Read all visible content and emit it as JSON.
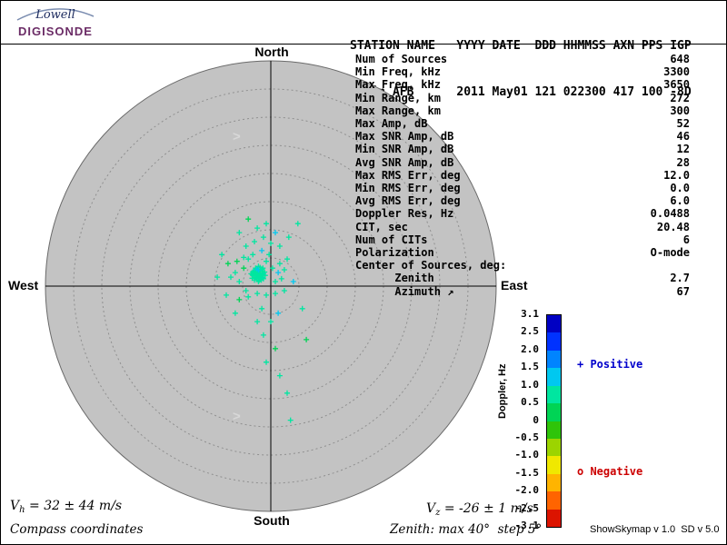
{
  "header": {
    "logo": {
      "name1": "Lowell",
      "name2": "DIGISONDE",
      "accent_color": "#6b2c66",
      "swoosh_color": "#7b8db0"
    },
    "columns_line": "STATION NAME   YYYY DATE  DDD HHMMSS AXN PPS IGP",
    "values_line": "Eglin AFB      2011 May01 121 022300 417 100 -8D"
  },
  "compass": {
    "north": "North",
    "south": "South",
    "east": "East",
    "west": "West"
  },
  "stats": {
    "rows": [
      [
        "Num of Sources",
        "648"
      ],
      [
        "Min Freq, kHz",
        "3300"
      ],
      [
        "Max Freq, kHz",
        "3650"
      ],
      [
        "Min Range, km",
        "272"
      ],
      [
        "Max Range, km",
        "300"
      ],
      [
        "Max Amp, dB",
        "52"
      ],
      [
        "Max SNR Amp, dB",
        "46"
      ],
      [
        "Min SNR Amp, dB",
        "12"
      ],
      [
        "Avg SNR Amp, dB",
        "28"
      ],
      [
        "Max RMS Err, deg",
        "12.0"
      ],
      [
        "Min RMS Err, deg",
        "0.0"
      ],
      [
        "Avg RMS Err, deg",
        "6.0"
      ],
      [
        "Doppler Res, Hz",
        "0.0488"
      ],
      [
        "CIT, sec",
        "20.48"
      ],
      [
        "Num of CITs",
        "6"
      ],
      [
        "Polarization",
        "O-mode"
      ],
      [
        "Center of Sources, deg:",
        ""
      ],
      [
        "      Zenith",
        "2.7"
      ],
      [
        "      Azimuth ↗",
        "67"
      ]
    ]
  },
  "colorbar": {
    "title": "Doppler, Hz",
    "ticks": [
      "3.1",
      "2.5",
      "2.0",
      "1.5",
      "1.0",
      "0.5",
      "0",
      "-0.5",
      "-1.0",
      "-1.5",
      "-2.0",
      "-2.5",
      "-3.1"
    ],
    "tick_values": [
      3.1,
      2.5,
      2.0,
      1.5,
      1.0,
      0.5,
      0,
      -0.5,
      -1.0,
      -1.5,
      -2.0,
      -2.5,
      -3.1
    ],
    "segment_colors": [
      "#0000c3",
      "#0032ff",
      "#0084ff",
      "#00c8f0",
      "#00e6a0",
      "#00d455",
      "#2fc40a",
      "#9cd400",
      "#f0e800",
      "#ffb400",
      "#ff6400",
      "#dc1400"
    ],
    "legend": {
      "positive": "+ Positive",
      "negative": "o Negative",
      "positive_color": "#0000cc",
      "negative_color": "#cc0000"
    }
  },
  "footer": {
    "vh": {
      "v": "V",
      "sub": "h",
      "rest": " = 32 ± 44 m/s"
    },
    "vz": {
      "v": "V",
      "sub": "z",
      "rest": " = -26 ± 1 m/s"
    },
    "coord_system": "Compass coordinates",
    "zenith_note": "Zenith: max 40°  step 5°",
    "version": "ShowSkymap v 1.0  SD v 5.0"
  },
  "chart_data": {
    "type": "scatter",
    "projection": "polar skymap (compass coordinates, zenith angle radial)",
    "zenith_max_deg": 40,
    "zenith_step_deg": 5,
    "rings": 8,
    "num_sources": 648,
    "center_of_sources": {
      "zenith_deg": 2.7,
      "azimuth_deg": 67
    },
    "doppler_scale_hz": {
      "min": -3.1,
      "max": 3.1
    },
    "marker": "plus",
    "disk_fill": "#c3c3c3",
    "ring_color": "#8f8f8f",
    "axis_color": "#000000",
    "points_format": [
      "east_offset_deg",
      "north_offset_deg",
      "doppler_hz"
    ],
    "points": [
      [
        -2.2,
        2.0,
        0.7
      ],
      [
        -1.6,
        1.6,
        0.8
      ],
      [
        -2.9,
        2.4,
        0.6
      ],
      [
        -1.9,
        2.9,
        0.9
      ],
      [
        -2.5,
        1.3,
        0.7
      ],
      [
        -3.2,
        1.9,
        0.8
      ],
      [
        -1.3,
        2.2,
        1.1
      ],
      [
        -2.1,
        1.0,
        0.6
      ],
      [
        -2.7,
        3.2,
        0.9
      ],
      [
        -1.7,
        1.9,
        0.7
      ],
      [
        -2.4,
        2.5,
        0.8
      ],
      [
        -1.4,
        1.4,
        1.2
      ],
      [
        -3.0,
        2.7,
        0.6
      ],
      [
        -2.2,
        3.5,
        0.9
      ],
      [
        -1.0,
        1.9,
        0.7
      ],
      [
        -3.5,
        2.2,
        0.8
      ],
      [
        -1.9,
        1.6,
        1.0
      ],
      [
        -2.5,
        2.1,
        0.7
      ],
      [
        -1.6,
        2.7,
        0.6
      ],
      [
        -2.2,
        0.8,
        0.9
      ],
      [
        -2.9,
        1.6,
        0.8
      ],
      [
        -2.1,
        2.2,
        1.1
      ],
      [
        -1.1,
        2.5,
        0.7
      ],
      [
        -3.3,
        1.4,
        0.6
      ],
      [
        -2.4,
        3.0,
        0.8
      ],
      [
        -1.7,
        1.1,
        0.9
      ],
      [
        -2.7,
        1.9,
        0.7
      ],
      [
        -1.4,
        3.2,
        1.0
      ],
      [
        -2.1,
        1.7,
        0.8
      ],
      [
        -3.0,
        2.2,
        0.6
      ],
      [
        -2.4,
        1.4,
        0.9
      ],
      [
        -1.9,
        2.4,
        0.7
      ],
      [
        -2.5,
        2.9,
        1.1
      ],
      [
        -1.3,
        1.3,
        0.8
      ],
      [
        -3.2,
        2.5,
        0.7
      ],
      [
        -2.2,
        1.9,
        0.9
      ],
      [
        -1.6,
        2.1,
        0.6
      ],
      [
        -2.9,
        1.1,
        0.8
      ],
      [
        -1.9,
        3.3,
        0.7
      ],
      [
        -2.4,
        2.2,
        1.0
      ],
      [
        -2.1,
        1.4,
        0.8
      ],
      [
        -2.7,
        2.5,
        0.6
      ],
      [
        -1.7,
        1.7,
        0.9
      ],
      [
        -1.4,
        2.4,
        0.7
      ],
      [
        -3.3,
        2.1,
        0.8
      ],
      [
        -2.2,
        2.9,
        1.1
      ],
      [
        -2.5,
        1.6,
        0.7
      ],
      [
        -1.9,
        1.9,
        0.8
      ],
      [
        -1.6,
        3.0,
        0.6
      ],
      [
        -2.9,
        2.1,
        0.9
      ],
      [
        -4.8,
        3.2,
        0.5
      ],
      [
        -5.6,
        0.8,
        0.7
      ],
      [
        -4.4,
        -0.8,
        0.8
      ],
      [
        -4.0,
        4.8,
        0.6
      ],
      [
        -0.8,
        4.4,
        0.9
      ],
      [
        0.3,
        3.2,
        0.7
      ],
      [
        1.3,
        2.4,
        1.2
      ],
      [
        0.8,
        0.8,
        0.6
      ],
      [
        1.6,
        4.0,
        0.8
      ],
      [
        -6.3,
        2.4,
        0.7
      ],
      [
        -6.0,
        4.4,
        0.5
      ],
      [
        -0.3,
        5.6,
        0.9
      ],
      [
        -3.2,
        5.6,
        0.7
      ],
      [
        -4.8,
        5.1,
        0.8
      ],
      [
        1.9,
        1.3,
        0.6
      ],
      [
        2.4,
        2.9,
        1.0
      ],
      [
        -7.1,
        1.6,
        0.7
      ],
      [
        -5.6,
        -2.4,
        0.5
      ],
      [
        -2.4,
        -1.3,
        0.8
      ],
      [
        -0.8,
        -1.6,
        0.9
      ],
      [
        0.8,
        -1.3,
        0.7
      ],
      [
        -4.0,
        -1.9,
        0.6
      ],
      [
        2.9,
        4.8,
        0.8
      ],
      [
        -1.6,
        6.3,
        1.1
      ],
      [
        -4.4,
        7.1,
        0.7
      ],
      [
        -7.6,
        4.0,
        0.5
      ],
      [
        0.0,
        7.6,
        0.8
      ],
      [
        -1.3,
        8.7,
        0.6
      ],
      [
        -2.9,
        7.9,
        0.9
      ],
      [
        1.6,
        7.1,
        0.7
      ],
      [
        -0.8,
        11.1,
        0.6
      ],
      [
        -2.4,
        10.3,
        0.8
      ],
      [
        -4.0,
        11.9,
        0.5
      ],
      [
        0.8,
        9.5,
        1.3
      ],
      [
        -5.6,
        9.5,
        0.7
      ],
      [
        3.2,
        8.7,
        0.9
      ],
      [
        -8.7,
        5.6,
        0.6
      ],
      [
        -9.5,
        1.6,
        0.8
      ],
      [
        2.4,
        -0.8,
        0.7
      ],
      [
        4.0,
        0.8,
        1.4
      ],
      [
        -1.6,
        -4.0,
        0.6
      ],
      [
        0.0,
        -6.3,
        0.9
      ],
      [
        -1.3,
        -8.7,
        0.7
      ],
      [
        0.8,
        -11.1,
        0.5
      ],
      [
        -0.8,
        -13.5,
        0.8
      ],
      [
        1.6,
        -15.9,
        0.6
      ],
      [
        2.9,
        -19.0,
        0.9
      ],
      [
        -2.4,
        -6.3,
        0.7
      ],
      [
        1.3,
        -4.8,
        1.2
      ],
      [
        6.3,
        -9.5,
        0.5
      ],
      [
        3.5,
        -23.8,
        0.8
      ],
      [
        -6.3,
        -4.8,
        0.6
      ],
      [
        4.8,
        11.1,
        0.7
      ],
      [
        -7.9,
        -1.6,
        0.9
      ],
      [
        5.6,
        -4.0,
        0.6
      ]
    ]
  }
}
